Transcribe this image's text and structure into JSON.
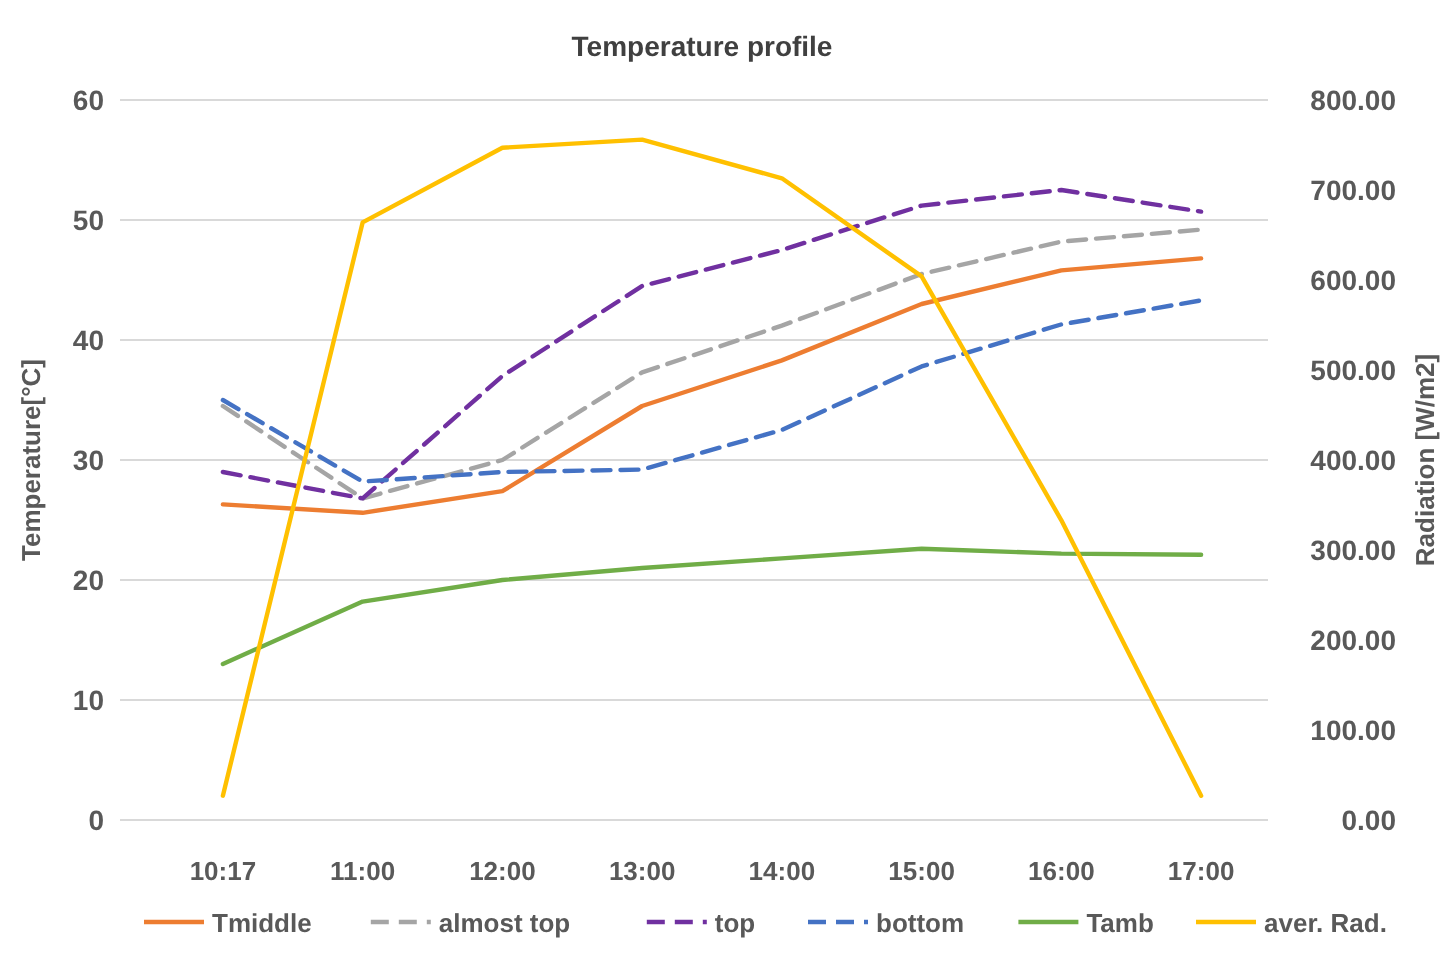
{
  "chart_data": {
    "type": "line",
    "title": "Temperature  profile",
    "ylabel": "Temperature[°C]",
    "y2label": "Radiation [W/m2]",
    "categories": [
      "10:17",
      "11:00",
      "12:00",
      "13:00",
      "14:00",
      "15:00",
      "16:00",
      "17:00"
    ],
    "ylim": [
      0,
      60
    ],
    "yticks": [
      0,
      10,
      20,
      30,
      40,
      50,
      60
    ],
    "y2lim": [
      0,
      800
    ],
    "y2ticks": [
      {
        "value": 0,
        "label": "0.00"
      },
      {
        "value": 100,
        "label": "100.00"
      },
      {
        "value": 200,
        "label": "200.00"
      },
      {
        "value": 300,
        "label": "300.00"
      },
      {
        "value": 400,
        "label": "400.00"
      },
      {
        "value": 500,
        "label": "500.00"
      },
      {
        "value": 600,
        "label": "600.00"
      },
      {
        "value": 700,
        "label": "700.00"
      },
      {
        "value": 800,
        "label": "800.00"
      }
    ],
    "grid": "y",
    "legend": "bottom",
    "series": [
      {
        "name": "Tmiddle",
        "color": "#ed7d31",
        "line_style": "solid",
        "values": [
          26.3,
          25.6,
          27.4,
          34.5,
          38.3,
          43,
          45.8,
          46.8
        ]
      },
      {
        "name": "almost top",
        "color": "#a5a5a5",
        "line_style": "dashed",
        "values": [
          34.5,
          26.8,
          30,
          37.3,
          41.2,
          45.5,
          48.2,
          49.2
        ]
      },
      {
        "name": "top",
        "color": "#7030a0",
        "line_style": "dashed",
        "values": [
          29,
          26.8,
          37,
          44.5,
          47.5,
          51.2,
          52.5,
          50.7
        ]
      },
      {
        "name": "bottom",
        "color": "#4472c4",
        "line_style": "dashed",
        "values": [
          35,
          28.2,
          29,
          29.2,
          32.5,
          37.8,
          41.3,
          43.3
        ]
      },
      {
        "name": "Tamb",
        "color": "#70ad47",
        "line_style": "solid",
        "values": [
          13,
          18.2,
          20,
          21,
          21.8,
          22.6,
          22.2,
          22.1
        ]
      },
      {
        "name": "aver. Rad.",
        "color": "#ffc000",
        "line_style": "solid",
        "axis": "y2",
        "values": [
          27,
          664,
          747,
          756,
          713,
          604,
          333,
          27
        ]
      }
    ]
  }
}
